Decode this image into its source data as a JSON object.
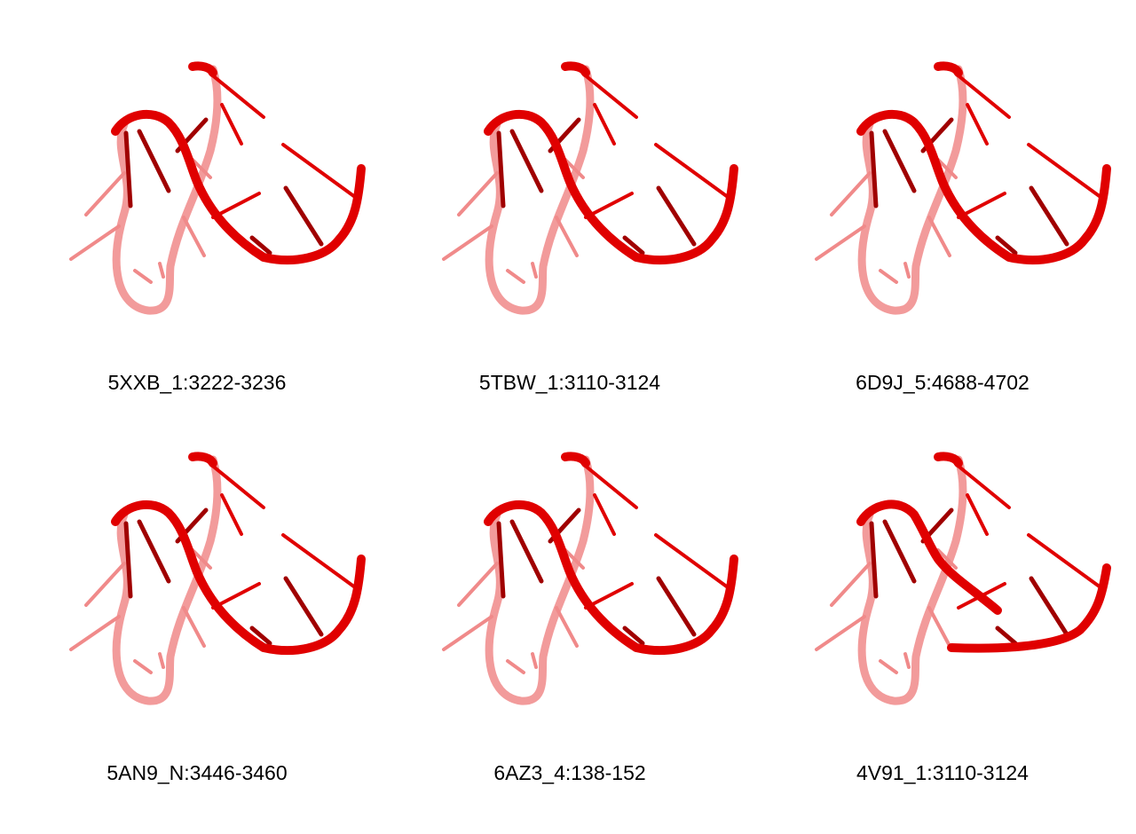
{
  "colors": {
    "strand": "#e00000",
    "strand_dark": "#a00000",
    "strand_light": "#f08a8a"
  },
  "panels": [
    {
      "label": "5XXB_1:3222-3236",
      "icon": "rna-structure-icon"
    },
    {
      "label": "5TBW_1:3110-3124",
      "icon": "rna-structure-icon"
    },
    {
      "label": "6D9J_5:4688-4702",
      "icon": "rna-structure-icon"
    },
    {
      "label": "5AN9_N:3446-3460",
      "icon": "rna-structure-icon"
    },
    {
      "label": "6AZ3_4:138-152",
      "icon": "rna-structure-icon"
    },
    {
      "label": "4V91_1:3110-3124",
      "icon": "rna-structure-icon"
    }
  ]
}
